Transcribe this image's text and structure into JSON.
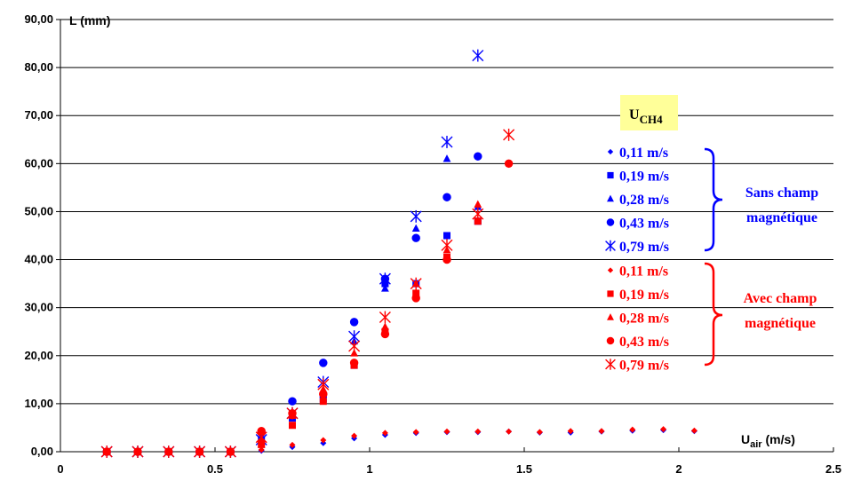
{
  "chart_data": {
    "type": "scatter",
    "ylabel": "L (mm)",
    "xlabel_main": "U",
    "xlabel_sub": "air",
    "xlabel_unit": " (m/s)",
    "xlim": [
      0,
      2.5
    ],
    "ylim": [
      0,
      90
    ],
    "xticks": [
      0,
      0.5,
      1,
      1.5,
      2,
      2.5
    ],
    "xtick_labels": [
      "0",
      "0.5",
      "1",
      "1.5",
      "2",
      "2.5"
    ],
    "yticks": [
      0,
      10,
      20,
      30,
      40,
      50,
      60,
      70,
      80,
      90
    ],
    "ytick_labels": [
      "0,00",
      "10,00",
      "20,00",
      "30,00",
      "40,00",
      "50,00",
      "60,00",
      "70,00",
      "80,00",
      "90,00"
    ],
    "grid": "horizontal",
    "legend_title_main": "U",
    "legend_title_sub": "CH4",
    "legend_title_bg": "#ffff99",
    "groups": [
      {
        "label_line1": "Sans champ",
        "label_line2": "magnétique",
        "color": "#0000ff"
      },
      {
        "label_line1": "Avec champ",
        "label_line2": "magnétique",
        "color": "#ff0000"
      }
    ],
    "series": [
      {
        "name": "0,11 m/s",
        "group": 0,
        "marker": "diamond",
        "color": "#0000ff",
        "x": [
          0.15,
          0.25,
          0.35,
          0.45,
          0.55,
          0.65,
          0.75,
          0.85,
          0.95,
          1.05,
          1.15,
          1.25,
          1.35,
          1.45,
          1.55,
          1.65,
          1.75,
          1.85,
          1.95,
          2.05
        ],
        "y": [
          0,
          0,
          0,
          0,
          0,
          0.2,
          1,
          1.8,
          2.8,
          3.5,
          3.9,
          4.1,
          4.1,
          4.2,
          4.0,
          4.0,
          4.2,
          4.4,
          4.5,
          4.3
        ]
      },
      {
        "name": "0,19 m/s",
        "group": 0,
        "marker": "square",
        "color": "#0000ff",
        "x": [
          0.15,
          0.25,
          0.35,
          0.45,
          0.55,
          0.65,
          0.75,
          0.85,
          0.95,
          1.05,
          1.15,
          1.25,
          1.35
        ],
        "y": [
          0,
          0,
          0,
          0,
          0,
          2.5,
          7,
          11,
          18,
          35,
          35,
          45,
          48
        ]
      },
      {
        "name": "0,28 m/s",
        "group": 0,
        "marker": "triangle",
        "color": "#0000ff",
        "x": [
          0.15,
          0.25,
          0.35,
          0.45,
          0.55,
          0.65,
          0.75,
          0.85,
          0.95,
          1.05,
          1.15,
          1.25,
          1.35
        ],
        "y": [
          0,
          0,
          0,
          0,
          0,
          1.5,
          8,
          12,
          23,
          34,
          46.5,
          61,
          51
        ]
      },
      {
        "name": "0,43 m/s",
        "group": 0,
        "marker": "circle",
        "color": "#0000ff",
        "x": [
          0.15,
          0.25,
          0.35,
          0.45,
          0.55,
          0.65,
          0.75,
          0.85,
          0.95,
          1.05,
          1.15,
          1.25,
          1.35
        ],
        "y": [
          0,
          0,
          0,
          0,
          0,
          4,
          10.5,
          18.5,
          27,
          36,
          44.5,
          53,
          61.5
        ]
      },
      {
        "name": "0,79 m/s",
        "group": 0,
        "marker": "star",
        "color": "#0000ff",
        "x": [
          0.15,
          0.25,
          0.35,
          0.45,
          0.55,
          0.65,
          0.75,
          0.85,
          0.95,
          1.05,
          1.15,
          1.25,
          1.35
        ],
        "y": [
          0,
          0,
          0,
          0,
          0,
          2.5,
          8,
          14.5,
          24,
          36,
          49,
          64.5,
          82.5
        ]
      },
      {
        "name": "0,11 m/s",
        "group": 1,
        "marker": "diamond",
        "color": "#ff0000",
        "x": [
          0.15,
          0.25,
          0.35,
          0.45,
          0.55,
          0.65,
          0.75,
          0.85,
          0.95,
          1.05,
          1.15,
          1.25,
          1.35,
          1.45,
          1.55,
          1.65,
          1.75,
          1.85,
          1.95,
          2.05
        ],
        "y": [
          0,
          0,
          0,
          0,
          0,
          0.4,
          1.4,
          2.4,
          3.3,
          3.9,
          4.1,
          4.2,
          4.2,
          4.2,
          4.1,
          4.3,
          4.3,
          4.6,
          4.7,
          4.4
        ]
      },
      {
        "name": "0,19 m/s",
        "group": 1,
        "marker": "square",
        "color": "#ff0000",
        "x": [
          0.15,
          0.25,
          0.35,
          0.45,
          0.55,
          0.65,
          0.75,
          0.85,
          0.95,
          1.05,
          1.15,
          1.25,
          1.35
        ],
        "y": [
          0,
          0,
          0,
          0,
          0,
          1.5,
          5.5,
          10.5,
          18,
          25,
          33,
          40.5,
          48
        ]
      },
      {
        "name": "0,28 m/s",
        "group": 1,
        "marker": "triangle",
        "color": "#ff0000",
        "x": [
          0.15,
          0.25,
          0.35,
          0.45,
          0.55,
          0.65,
          0.75,
          0.85,
          0.95,
          1.05,
          1.15,
          1.25,
          1.35
        ],
        "y": [
          0,
          0,
          0,
          0,
          0,
          2.5,
          7.5,
          13,
          20.5,
          26,
          35,
          42,
          51.5
        ]
      },
      {
        "name": "0,43 m/s",
        "group": 1,
        "marker": "circle",
        "color": "#ff0000",
        "x": [
          0.15,
          0.25,
          0.35,
          0.45,
          0.55,
          0.65,
          0.75,
          0.85,
          0.95,
          1.05,
          1.15,
          1.25,
          1.45
        ],
        "y": [
          0,
          0,
          0,
          0,
          0,
          4.3,
          8,
          12,
          18.5,
          24.5,
          32,
          40,
          60
        ]
      },
      {
        "name": "0,79 m/s",
        "group": 1,
        "marker": "star",
        "color": "#ff0000",
        "x": [
          0.15,
          0.25,
          0.35,
          0.45,
          0.55,
          0.65,
          0.75,
          0.85,
          0.95,
          1.05,
          1.15,
          1.25,
          1.35,
          1.45
        ],
        "y": [
          0,
          0,
          0,
          0,
          0,
          3,
          8,
          14,
          22,
          28,
          35,
          43,
          49.5,
          66
        ]
      }
    ]
  }
}
